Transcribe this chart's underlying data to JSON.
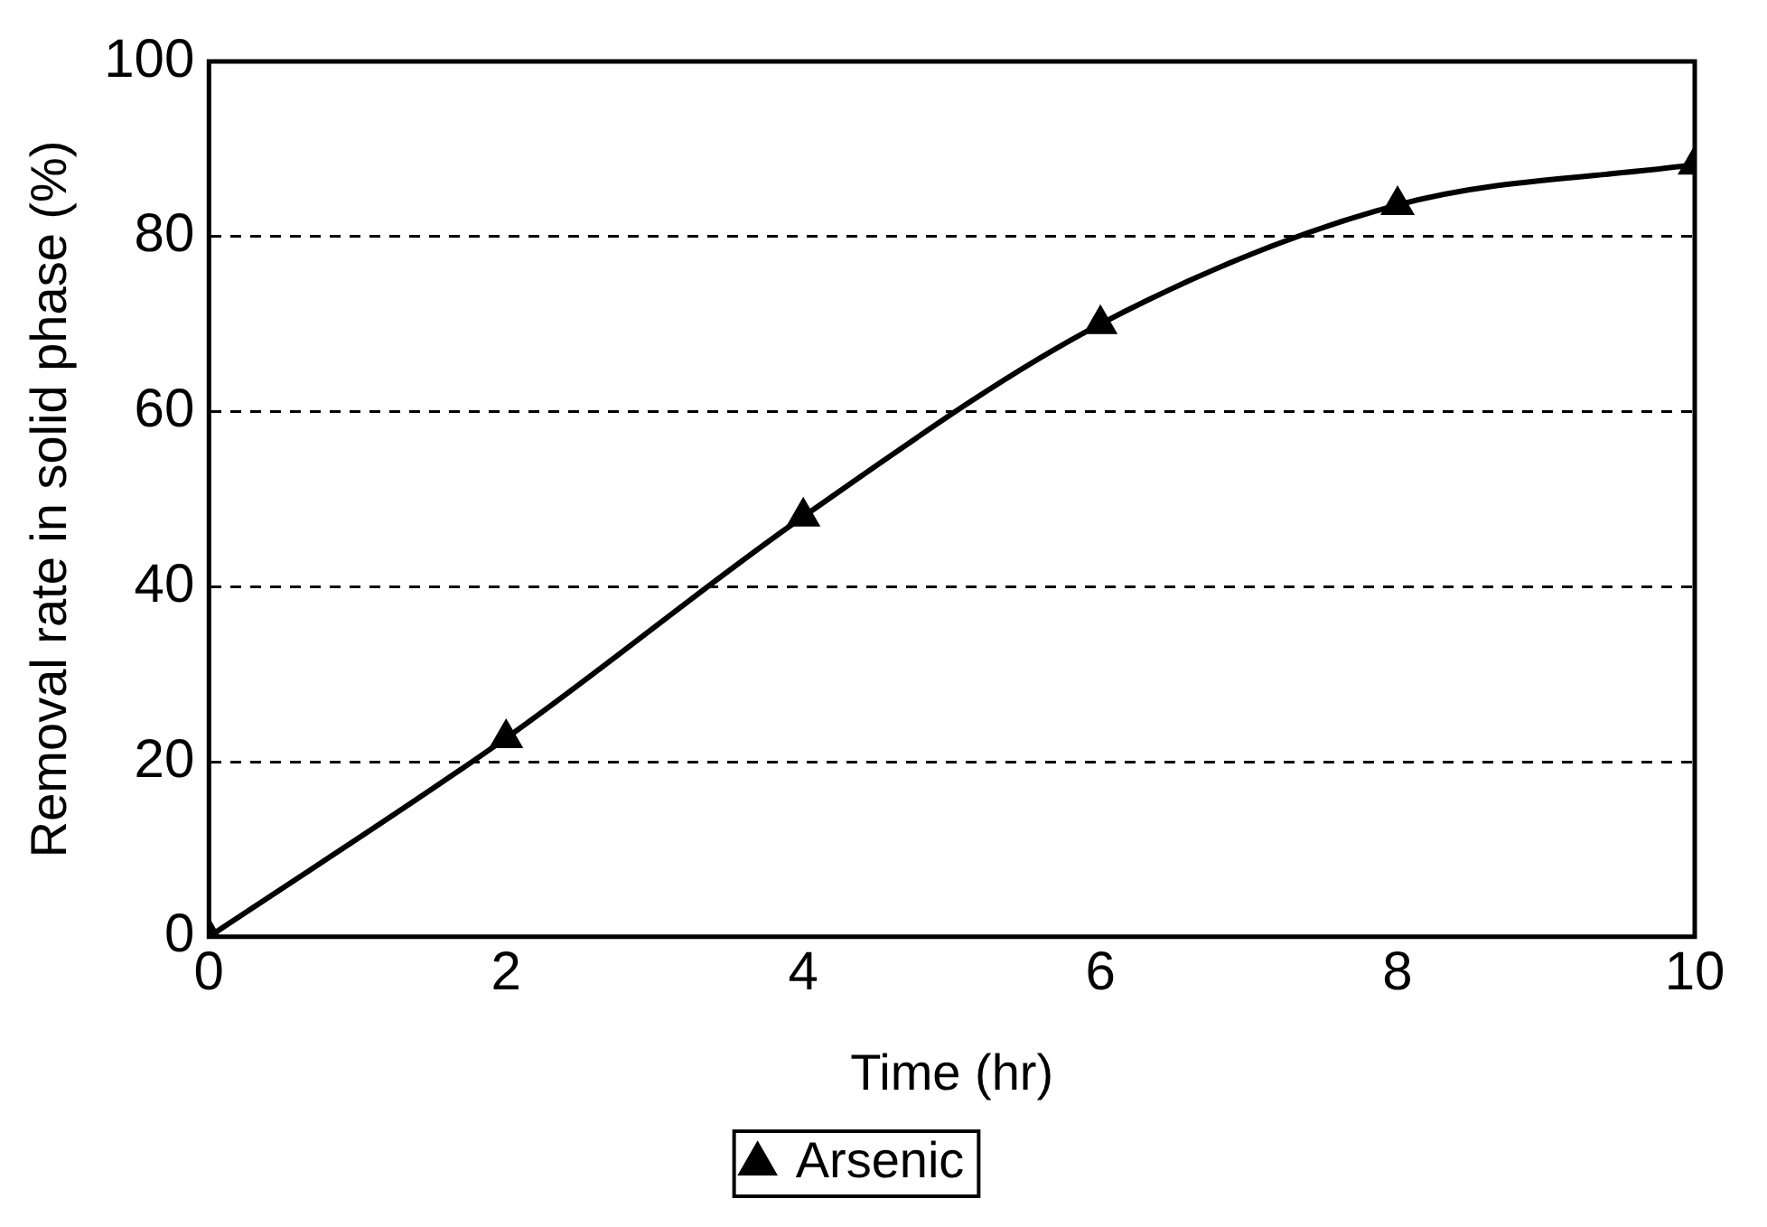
{
  "chart_data": {
    "type": "line",
    "xlabel": "Time (hr)",
    "ylabel": "Removal rate in solid phase (%)",
    "x": [
      0,
      2,
      4,
      6,
      8,
      10
    ],
    "series": [
      {
        "name": "Arsenic",
        "color": "#000000",
        "values": [
          0,
          22.7,
          48,
          70,
          83.6,
          88.2
        ]
      }
    ],
    "xlim": [
      0,
      10
    ],
    "xticks": [
      0,
      2,
      4,
      6,
      8,
      10
    ],
    "ylim": [
      0,
      100
    ],
    "yticks": [
      0,
      20,
      40,
      60,
      80,
      100
    ],
    "grid": "y",
    "legend": "bottom",
    "marker": "triangle",
    "line_style": "solid"
  }
}
